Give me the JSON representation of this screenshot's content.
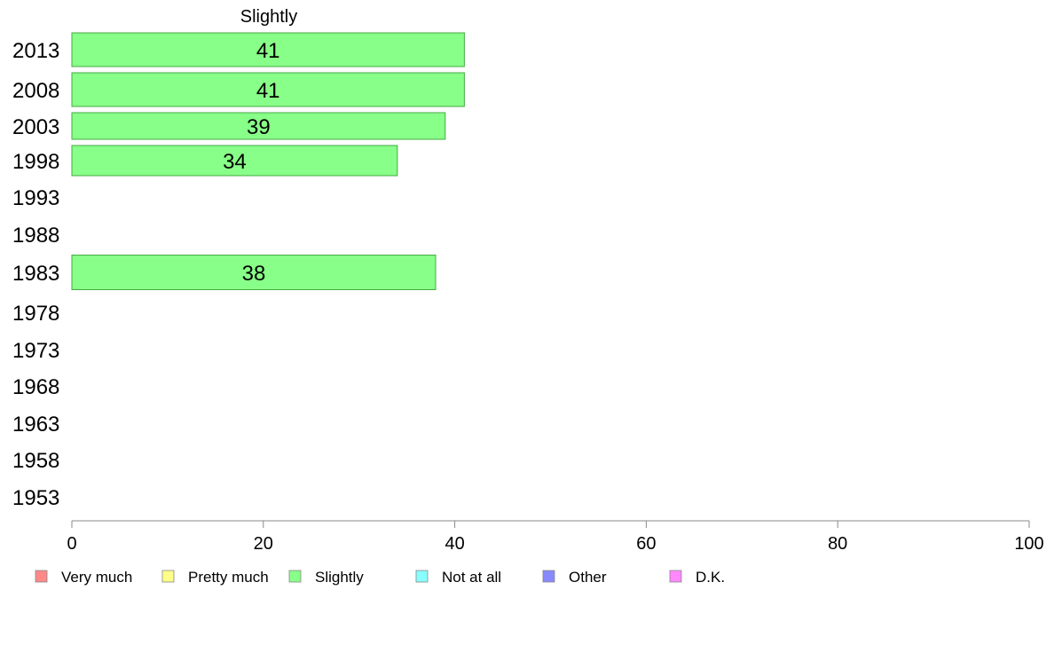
{
  "chart_data": {
    "type": "bar",
    "orientation": "horizontal",
    "title": "Slightly",
    "categories": [
      "2013",
      "2008",
      "2003",
      "1998",
      "1993",
      "1988",
      "1983",
      "1978",
      "1973",
      "1968",
      "1963",
      "1958",
      "1953"
    ],
    "series": [
      {
        "name": "Slightly",
        "color": "#88ff88",
        "values": [
          41,
          41,
          39,
          34,
          null,
          null,
          38,
          null,
          null,
          null,
          null,
          null,
          null
        ]
      }
    ],
    "xlim": [
      0,
      100
    ],
    "xticks": [
      0,
      20,
      40,
      60,
      80,
      100
    ],
    "grid": false,
    "legend_position": "bottom",
    "legend": [
      {
        "label": "Very much",
        "color": "#ff8888"
      },
      {
        "label": "Pretty much",
        "color": "#ffff88"
      },
      {
        "label": "Slightly",
        "color": "#88ff88"
      },
      {
        "label": "Not at all",
        "color": "#88ffff"
      },
      {
        "label": "Other",
        "color": "#8888ff"
      },
      {
        "label": "D.K.",
        "color": "#ff88ff"
      }
    ]
  }
}
